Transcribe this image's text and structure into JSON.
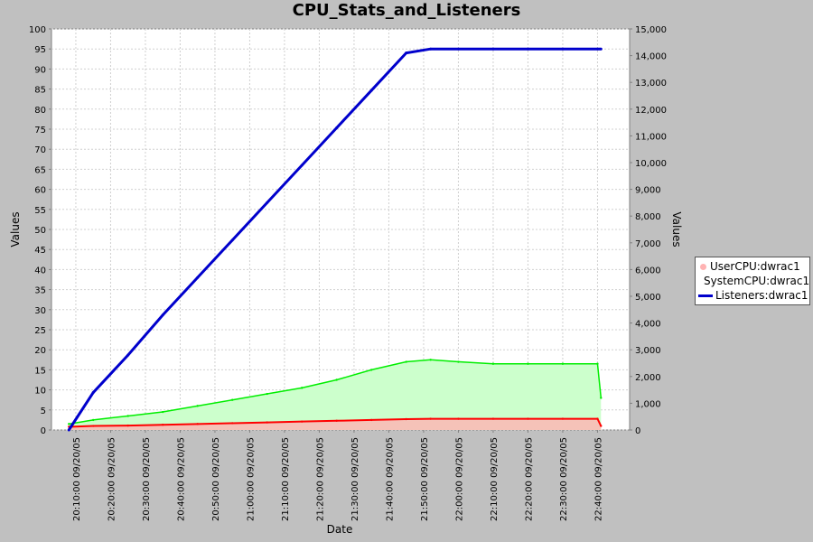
{
  "chart_data": {
    "type": "area",
    "title": "CPU_Stats_and_Listeners",
    "xlabel": "Date",
    "ylabel": "Values",
    "y2label": "Values",
    "ylim": [
      0,
      100
    ],
    "y2lim": [
      0,
      15000
    ],
    "yticks": [
      "0",
      "5",
      "10",
      "15",
      "20",
      "25",
      "30",
      "35",
      "40",
      "45",
      "50",
      "55",
      "60",
      "65",
      "70",
      "75",
      "80",
      "85",
      "90",
      "95",
      "100"
    ],
    "y2ticks": [
      "0",
      "1,000",
      "2,000",
      "3,000",
      "4,000",
      "5,000",
      "6,000",
      "7,000",
      "8,000",
      "9,000",
      "10,000",
      "11,000",
      "12,000",
      "13,000",
      "14,000",
      "15,000"
    ],
    "xticks": [
      "20:10:00 09/20/05",
      "20:20:00 09/20/05",
      "20:30:00 09/20/05",
      "20:40:00 09/20/05",
      "20:50:00 09/20/05",
      "21:00:00 09/20/05",
      "21:10:00 09/20/05",
      "21:20:00 09/20/05",
      "21:30:00 09/20/05",
      "21:40:00 09/20/05",
      "21:50:00 09/20/05",
      "22:00:00 09/20/05",
      "22:10:00 09/20/05",
      "22:20:00 09/20/05",
      "22:30:00 09/20/05",
      "22:40:00 09/20/05"
    ],
    "x": [
      "20:08",
      "20:15",
      "20:25",
      "20:35",
      "20:45",
      "20:55",
      "21:05",
      "21:15",
      "21:25",
      "21:35",
      "21:45",
      "21:52",
      "22:00",
      "22:10",
      "22:20",
      "22:30",
      "22:40",
      "22:41"
    ],
    "series": [
      {
        "name": "UserCPU:dwrac1",
        "axis": "left",
        "color": "#ff0000",
        "values": [
          0.8,
          1.0,
          1.1,
          1.3,
          1.5,
          1.7,
          1.9,
          2.1,
          2.3,
          2.5,
          2.7,
          2.8,
          2.8,
          2.8,
          2.8,
          2.8,
          2.8,
          1.0
        ]
      },
      {
        "name": "SystemCPU:dwrac1",
        "axis": "left",
        "color": "#00ee00",
        "values": [
          1.5,
          2.5,
          3.5,
          4.5,
          6.0,
          7.5,
          9.0,
          10.5,
          12.5,
          15.0,
          17.0,
          17.5,
          17.0,
          16.5,
          16.5,
          16.5,
          16.5,
          8.0
        ]
      },
      {
        "name": "Listeners:dwrac1",
        "axis": "right",
        "color": "#0000cc",
        "values": [
          0,
          1400,
          2800,
          4300,
          5700,
          7100,
          8500,
          9900,
          11300,
          12700,
          14100,
          14250,
          14250,
          14250,
          14250,
          14250,
          14250,
          14250
        ]
      }
    ],
    "legend": "right",
    "grid": true
  }
}
